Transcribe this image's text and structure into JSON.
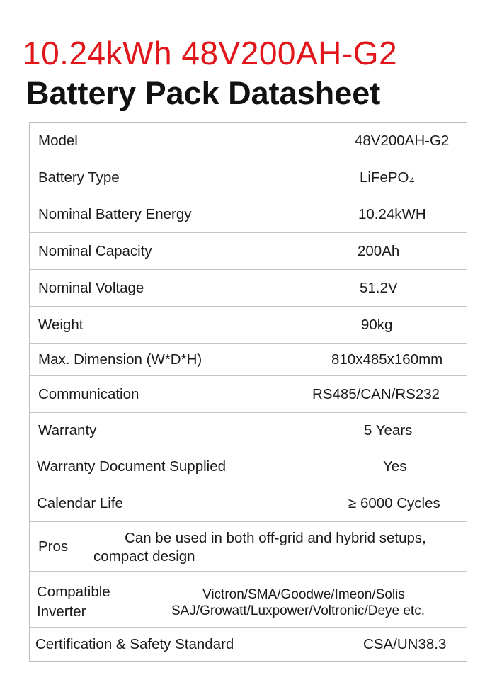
{
  "title": "10.24kWh 48V200AH-G2",
  "subtitle": "Battery Pack Datasheet",
  "rows": [
    {
      "label": "Model",
      "value": "48V200AH-G2"
    },
    {
      "label": "Battery Type",
      "value": "LiFePO₄"
    },
    {
      "label": "Nominal Battery Energy",
      "value": "10.24kWH"
    },
    {
      "label": "Nominal Capacity",
      "value": "200Ah"
    },
    {
      "label": "Nominal Voltage",
      "value": "51.2V"
    },
    {
      "label": "Weight",
      "value": "90kg"
    },
    {
      "label": "Max. Dimension (W*D*H)",
      "value": "810x485x160mm"
    },
    {
      "label": "Communication",
      "value": "RS485/CAN/RS232"
    },
    {
      "label": "Warranty",
      "value": "5 Years"
    },
    {
      "label": "Warranty Document Supplied",
      "value": "Yes"
    },
    {
      "label": "Calendar Life",
      "value": "≥ 6000 Cycles"
    },
    {
      "label": "Pros",
      "value_line1": "Can be used in both off-grid and hybrid setups,",
      "value_line2": "compact design"
    },
    {
      "label_line1": "Compatible",
      "label_line2": "Inverter",
      "value_line1": "Victron/SMA/Goodwe/Imeon/Solis",
      "value_line2": "SAJ/Growatt/Luxpower/Voltronic/Deye etc."
    },
    {
      "label": "Certification & Safety Standard",
      "value": "CSA/UN38.3"
    }
  ],
  "colors": {
    "title": "#e0161b",
    "border": "#c4c4c4"
  }
}
